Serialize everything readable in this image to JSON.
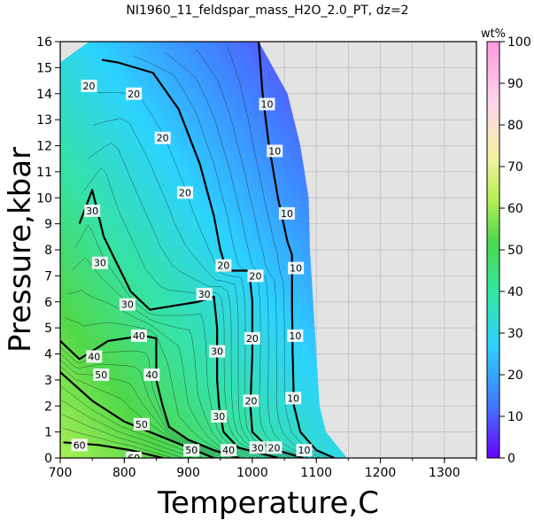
{
  "chart_data": {
    "type": "heatmap",
    "title": "NI1960_11_feldspar_mass_H2O_2.0_PT, dz=2",
    "xlabel": "Temperature,C",
    "ylabel": "Pressure,kbar",
    "xlim": [
      700,
      1350
    ],
    "ylim": [
      0,
      16
    ],
    "x_ticks": [
      700,
      800,
      900,
      1000,
      1100,
      1200,
      1300
    ],
    "y_ticks": [
      0,
      1,
      2,
      3,
      4,
      5,
      6,
      7,
      8,
      9,
      10,
      11,
      12,
      13,
      14,
      15,
      16
    ],
    "grid": true,
    "colorbar": {
      "label": "wt%",
      "min": 0,
      "max": 100,
      "ticks": [
        0,
        10,
        20,
        30,
        40,
        50,
        60,
        70,
        80,
        90,
        100
      ],
      "colors": [
        "#6a00ff",
        "#3f7bff",
        "#2fd0ff",
        "#33e6a0",
        "#4cd84c",
        "#b5ef55",
        "#f2f2a0",
        "#ffd6ea",
        "#ff9ae0"
      ]
    },
    "thin_contour_interval": 2,
    "contours": [
      {
        "level": 10,
        "points": [
          [
            1010,
            16
          ],
          [
            1016,
            14
          ],
          [
            1026,
            12
          ],
          [
            1040,
            10
          ],
          [
            1055,
            8.3
          ],
          [
            1062,
            7.8
          ],
          [
            1062,
            6
          ],
          [
            1063,
            4
          ],
          [
            1065,
            2
          ],
          [
            1075,
            1
          ],
          [
            1100,
            0.3
          ],
          [
            1128,
            0
          ]
        ]
      },
      {
        "level": 20,
        "points": [
          [
            765,
            15.3
          ],
          [
            790,
            15.2
          ],
          [
            845,
            14.8
          ],
          [
            885,
            13.4
          ],
          [
            918,
            11.3
          ],
          [
            940,
            9.3
          ],
          [
            950,
            8
          ],
          [
            960,
            7.2
          ],
          [
            995,
            7.2
          ],
          [
            1000,
            6
          ],
          [
            1000,
            4
          ],
          [
            997,
            2
          ],
          [
            1000,
            1
          ],
          [
            1025,
            0.4
          ],
          [
            1080,
            0
          ]
        ]
      },
      {
        "level": 30,
        "points": [
          [
            730,
            9
          ],
          [
            750,
            10.3
          ],
          [
            768,
            8.5
          ],
          [
            810,
            6.4
          ],
          [
            840,
            5.7
          ],
          [
            915,
            6
          ],
          [
            940,
            6.2
          ],
          [
            945,
            5
          ],
          [
            945,
            3
          ],
          [
            948,
            2
          ],
          [
            955,
            1
          ],
          [
            978,
            0.4
          ],
          [
            1040,
            0
          ]
        ]
      },
      {
        "level": 40,
        "points": [
          [
            700,
            4.5
          ],
          [
            730,
            3.8
          ],
          [
            775,
            4.5
          ],
          [
            830,
            4.7
          ],
          [
            850,
            4.6
          ],
          [
            850,
            3
          ],
          [
            860,
            2
          ],
          [
            870,
            1.2
          ],
          [
            900,
            0.7
          ],
          [
            940,
            0.3
          ],
          [
            980,
            0
          ]
        ]
      },
      {
        "level": 50,
        "points": [
          [
            700,
            3.3
          ],
          [
            750,
            2.2
          ],
          [
            800,
            1.4
          ],
          [
            850,
            0.9
          ],
          [
            900,
            0.4
          ],
          [
            940,
            0
          ]
        ]
      },
      {
        "level": 60,
        "points": [
          [
            705,
            0.6
          ],
          [
            760,
            0.5
          ],
          [
            810,
            0.3
          ],
          [
            860,
            0
          ]
        ]
      }
    ],
    "contour_labels": [
      {
        "text": "20",
        "x": 745,
        "y": 14.3
      },
      {
        "text": "20",
        "x": 815,
        "y": 14.0
      },
      {
        "text": "20",
        "x": 860,
        "y": 12.3
      },
      {
        "text": "20",
        "x": 895,
        "y": 10.2
      },
      {
        "text": "20",
        "x": 955,
        "y": 7.4
      },
      {
        "text": "20",
        "x": 1005,
        "y": 7.0
      },
      {
        "text": "20",
        "x": 1000,
        "y": 4.6
      },
      {
        "text": "20",
        "x": 998,
        "y": 2.2
      },
      {
        "text": "20",
        "x": 1034,
        "y": 0.4
      },
      {
        "text": "10",
        "x": 1023,
        "y": 13.6
      },
      {
        "text": "10",
        "x": 1035,
        "y": 11.8
      },
      {
        "text": "10",
        "x": 1054,
        "y": 9.4
      },
      {
        "text": "10",
        "x": 1068,
        "y": 7.3
      },
      {
        "text": "10",
        "x": 1067,
        "y": 4.7
      },
      {
        "text": "10",
        "x": 1064,
        "y": 2.3
      },
      {
        "text": "10",
        "x": 1081,
        "y": 0.3
      },
      {
        "text": "30",
        "x": 750,
        "y": 9.5
      },
      {
        "text": "30",
        "x": 762,
        "y": 7.5
      },
      {
        "text": "30",
        "x": 805,
        "y": 5.9
      },
      {
        "text": "30",
        "x": 925,
        "y": 6.3
      },
      {
        "text": "30",
        "x": 945,
        "y": 4.1
      },
      {
        "text": "30",
        "x": 948,
        "y": 1.6
      },
      {
        "text": "30",
        "x": 1008,
        "y": 0.4
      },
      {
        "text": "40",
        "x": 823,
        "y": 4.7
      },
      {
        "text": "40",
        "x": 753,
        "y": 3.9
      },
      {
        "text": "40",
        "x": 843,
        "y": 3.2
      },
      {
        "text": "40",
        "x": 963,
        "y": 0.3
      },
      {
        "text": "50",
        "x": 764,
        "y": 3.2
      },
      {
        "text": "50",
        "x": 827,
        "y": 1.3
      },
      {
        "text": "50",
        "x": 905,
        "y": 0.3
      },
      {
        "text": "60",
        "x": 730,
        "y": 0.5
      },
      {
        "text": "60",
        "x": 815,
        "y": 0.0
      }
    ],
    "data_region_boundary": [
      [
        700,
        15.2
      ],
      [
        745,
        16
      ],
      [
        1010,
        16
      ],
      [
        1055,
        14
      ],
      [
        1075,
        12
      ],
      [
        1088,
        10
      ],
      [
        1090,
        8
      ],
      [
        1095,
        6
      ],
      [
        1100,
        4
      ],
      [
        1105,
        2
      ],
      [
        1115,
        1
      ],
      [
        1148,
        0
      ],
      [
        700,
        0
      ]
    ]
  }
}
